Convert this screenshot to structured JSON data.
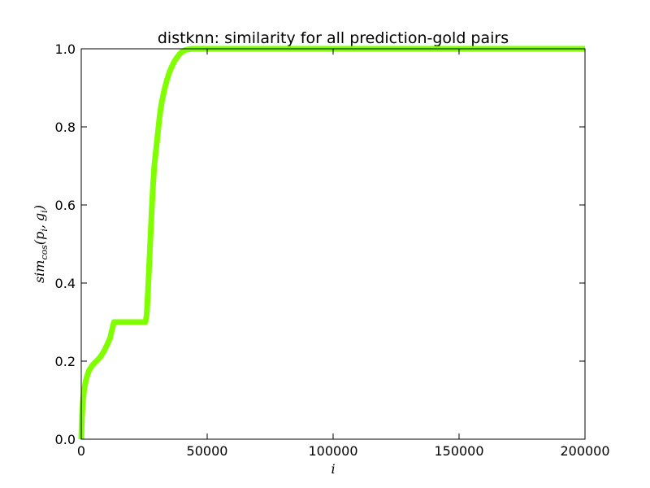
{
  "chart_data": {
    "type": "line",
    "title": "distknn: similarity for all prediction-gold pairs",
    "xlabel": "i",
    "ylabel": "sim_cos(p_i, g_i)",
    "ylabel_parts": {
      "base": "sim",
      "sub": "cos",
      "open": "(",
      "p": "p",
      "p_sub": "i",
      "comma": ",",
      "g": "g",
      "g_sub": "i",
      "close": ")"
    },
    "xlim": [
      0,
      200000
    ],
    "ylim": [
      0.0,
      1.0
    ],
    "x_ticks": [
      "0",
      "50000",
      "100000",
      "150000",
      "200000"
    ],
    "y_ticks": [
      "0.0",
      "0.2",
      "0.4",
      "0.6",
      "0.8",
      "1.0"
    ],
    "grid": false,
    "legend": "none",
    "series": [
      {
        "color": "#7fff00",
        "x": [
          0,
          300,
          700,
          1200,
          2000,
          3000,
          4500,
          6000,
          7500,
          9000,
          10500,
          11500,
          12000,
          12600,
          13000,
          18000,
          22000,
          25500,
          26000,
          26500,
          27000,
          27500,
          28000,
          28500,
          29000,
          29500,
          30000,
          30500,
          31000,
          31500,
          32000,
          33000,
          34000,
          35000,
          36000,
          37000,
          38000,
          39000,
          40000,
          41000,
          42000,
          43000,
          44000,
          45000,
          50000,
          100000,
          150000,
          200000
        ],
        "y": [
          0.0,
          0.06,
          0.1,
          0.13,
          0.155,
          0.175,
          0.19,
          0.2,
          0.21,
          0.225,
          0.245,
          0.26,
          0.275,
          0.29,
          0.3,
          0.3,
          0.3,
          0.3,
          0.32,
          0.38,
          0.45,
          0.52,
          0.59,
          0.65,
          0.7,
          0.73,
          0.76,
          0.79,
          0.82,
          0.845,
          0.865,
          0.895,
          0.92,
          0.94,
          0.955,
          0.968,
          0.978,
          0.986,
          0.992,
          0.996,
          0.998,
          0.999,
          1.0,
          1.0,
          1.0,
          1.0,
          1.0,
          1.0
        ]
      }
    ]
  }
}
